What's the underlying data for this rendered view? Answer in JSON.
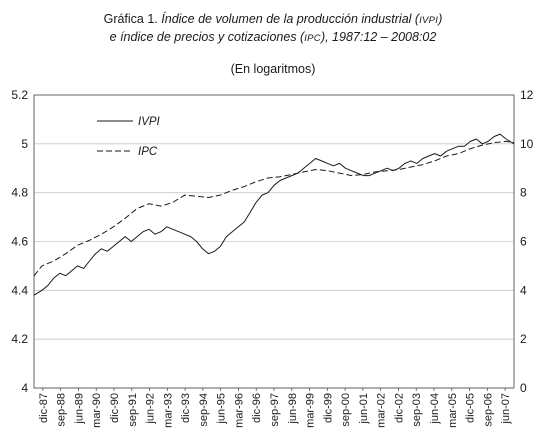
{
  "title": {
    "prefix": "Gráfica 1. ",
    "line1_a": "Índice de volumen de la producción industrial (",
    "line1_sc": "IVPI",
    "line1_b": ")",
    "line2_a": "e índice de precios y cotizaciones (",
    "line2_sc": "IPC",
    "line2_b": "), 1987:12 – 2008:02"
  },
  "subtitle": "(En logaritmos)",
  "chart_data": {
    "type": "line",
    "y_left": {
      "min": 4,
      "max": 5.2,
      "ticks": [
        "4",
        "4.2",
        "4.4",
        "4.6",
        "4.8",
        "5",
        "5.2"
      ]
    },
    "y_right": {
      "min": 0,
      "max": 12,
      "ticks": [
        "0",
        "2",
        "4",
        "6",
        "8",
        "10",
        "12"
      ]
    },
    "x_range": [
      1987.917,
      2008.083
    ],
    "x_ticks": [
      "dic-87",
      "sep-88",
      "jun-89",
      "mar-90",
      "dic-90",
      "sep-91",
      "jun-92",
      "mar-93",
      "dic-93",
      "sep-94",
      "jun-95",
      "mar-96",
      "dic-96",
      "sep-97",
      "jun-98",
      "mar-99",
      "dic-99",
      "sep-00",
      "jun-01",
      "mar-02",
      "dic-02",
      "sep-03",
      "jun-04",
      "mar-05",
      "dic-05",
      "sep-06",
      "jun-07"
    ],
    "grid": "horizontal",
    "legend_position": "top-left",
    "series": [
      {
        "name": "IVPI",
        "axis": "left",
        "style": "solid",
        "x": [
          1987.92,
          1988.25,
          1988.5,
          1988.75,
          1989.0,
          1989.25,
          1989.5,
          1989.75,
          1990.0,
          1990.25,
          1990.5,
          1990.75,
          1991.0,
          1991.25,
          1991.5,
          1991.75,
          1992.0,
          1992.25,
          1992.5,
          1992.75,
          1993.0,
          1993.25,
          1993.5,
          1993.75,
          1994.0,
          1994.25,
          1994.5,
          1994.75,
          1995.0,
          1995.25,
          1995.5,
          1995.75,
          1996.0,
          1996.25,
          1996.5,
          1996.75,
          1997.0,
          1997.25,
          1997.5,
          1997.75,
          1998.0,
          1998.25,
          1998.5,
          1998.75,
          1999.0,
          1999.25,
          1999.5,
          1999.75,
          2000.0,
          2000.25,
          2000.5,
          2000.75,
          2001.0,
          2001.25,
          2001.5,
          2001.75,
          2002.0,
          2002.25,
          2002.5,
          2002.75,
          2003.0,
          2003.25,
          2003.5,
          2003.75,
          2004.0,
          2004.25,
          2004.5,
          2004.75,
          2005.0,
          2005.25,
          2005.5,
          2005.75,
          2006.0,
          2006.25,
          2006.5,
          2006.75,
          2007.0,
          2007.25,
          2007.5,
          2007.75,
          2008.08
        ],
        "y": [
          4.38,
          4.4,
          4.42,
          4.45,
          4.47,
          4.46,
          4.48,
          4.5,
          4.49,
          4.52,
          4.55,
          4.57,
          4.56,
          4.58,
          4.6,
          4.62,
          4.6,
          4.62,
          4.64,
          4.65,
          4.63,
          4.64,
          4.66,
          4.65,
          4.64,
          4.63,
          4.62,
          4.6,
          4.57,
          4.55,
          4.56,
          4.58,
          4.62,
          4.64,
          4.66,
          4.68,
          4.72,
          4.76,
          4.79,
          4.8,
          4.83,
          4.85,
          4.86,
          4.87,
          4.88,
          4.9,
          4.92,
          4.94,
          4.93,
          4.92,
          4.91,
          4.92,
          4.9,
          4.89,
          4.88,
          4.87,
          4.87,
          4.88,
          4.89,
          4.9,
          4.89,
          4.9,
          4.92,
          4.93,
          4.92,
          4.94,
          4.95,
          4.96,
          4.95,
          4.97,
          4.98,
          4.99,
          4.99,
          5.01,
          5.02,
          5.0,
          5.01,
          5.03,
          5.04,
          5.02,
          5.0
        ]
      },
      {
        "name": "IPC",
        "axis": "right",
        "style": "dashed",
        "x": [
          1987.92,
          1988.25,
          1988.75,
          1989.25,
          1989.75,
          1990.25,
          1990.75,
          1991.25,
          1991.75,
          1992.25,
          1992.75,
          1993.25,
          1993.75,
          1994.25,
          1994.75,
          1995.25,
          1995.75,
          1996.25,
          1996.75,
          1997.25,
          1997.75,
          1998.25,
          1998.75,
          1999.25,
          1999.75,
          2000.25,
          2000.75,
          2001.25,
          2001.75,
          2002.25,
          2002.75,
          2003.25,
          2003.75,
          2004.25,
          2004.75,
          2005.25,
          2005.75,
          2006.25,
          2006.75,
          2007.25,
          2007.75,
          2008.08
        ],
        "y": [
          4.6,
          5.0,
          5.2,
          5.5,
          5.85,
          6.05,
          6.3,
          6.6,
          6.95,
          7.35,
          7.55,
          7.45,
          7.6,
          7.9,
          7.85,
          7.8,
          7.9,
          8.1,
          8.25,
          8.45,
          8.6,
          8.65,
          8.75,
          8.85,
          8.95,
          8.9,
          8.8,
          8.7,
          8.75,
          8.85,
          8.9,
          8.95,
          9.05,
          9.15,
          9.3,
          9.5,
          9.6,
          9.8,
          9.95,
          10.05,
          10.1,
          10.05
        ]
      }
    ]
  }
}
